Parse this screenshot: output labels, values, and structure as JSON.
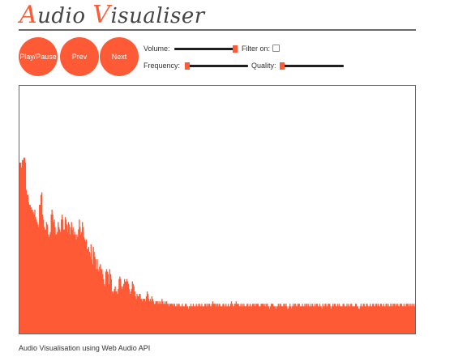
{
  "header": {
    "title_first_initial": "A",
    "title_first_rest": "udio ",
    "title_second_initial": "V",
    "title_second_rest": "isualiser"
  },
  "controls": {
    "play_pause_label": "Play/Pause",
    "prev_label": "Prev",
    "next_label": "Next",
    "volume_label": "Volume:",
    "volume_value": 1.0,
    "filter_label": "Filter on:",
    "filter_checked": false,
    "frequency_label": "Frequency:",
    "frequency_value": 0.0,
    "quality_label": "Quality:",
    "quality_value": 0.0
  },
  "visualiser": {
    "bar_color": "#ff5a36",
    "levels": [
      0.69,
      0.69,
      0.67,
      0.7,
      0.7,
      0.71,
      0.71,
      0.69,
      0.58,
      0.56,
      0.56,
      0.53,
      0.52,
      0.52,
      0.51,
      0.5,
      0.5,
      0.49,
      0.48,
      0.5,
      0.47,
      0.46,
      0.45,
      0.44,
      0.43,
      0.52,
      0.52,
      0.56,
      0.57,
      0.48,
      0.46,
      0.43,
      0.42,
      0.42,
      0.45,
      0.44,
      0.4,
      0.39,
      0.4,
      0.41,
      0.48,
      0.5,
      0.48,
      0.45,
      0.46,
      0.43,
      0.4,
      0.4,
      0.41,
      0.45,
      0.43,
      0.42,
      0.41,
      0.46,
      0.48,
      0.46,
      0.42,
      0.42,
      0.47,
      0.46,
      0.44,
      0.41,
      0.45,
      0.44,
      0.4,
      0.43,
      0.45,
      0.42,
      0.43,
      0.4,
      0.41,
      0.4,
      0.38,
      0.4,
      0.39,
      0.42,
      0.46,
      0.43,
      0.4,
      0.41,
      0.45,
      0.43,
      0.39,
      0.38,
      0.37,
      0.38,
      0.34,
      0.34,
      0.35,
      0.33,
      0.31,
      0.36,
      0.3,
      0.28,
      0.35,
      0.33,
      0.31,
      0.3,
      0.26,
      0.3,
      0.26,
      0.25,
      0.27,
      0.28,
      0.26,
      0.26,
      0.24,
      0.22,
      0.2,
      0.19,
      0.25,
      0.26,
      0.25,
      0.24,
      0.2,
      0.26,
      0.24,
      0.22,
      0.17,
      0.16,
      0.17,
      0.18,
      0.19,
      0.17,
      0.17,
      0.16,
      0.18,
      0.22,
      0.23,
      0.22,
      0.19,
      0.18,
      0.19,
      0.2,
      0.22,
      0.21,
      0.21,
      0.22,
      0.21,
      0.2,
      0.18,
      0.16,
      0.17,
      0.18,
      0.21,
      0.2,
      0.19,
      0.17,
      0.15,
      0.14,
      0.16,
      0.15,
      0.15,
      0.16,
      0.16,
      0.14,
      0.14,
      0.13,
      0.14,
      0.14,
      0.14,
      0.13,
      0.15,
      0.17,
      0.16,
      0.14,
      0.13,
      0.14,
      0.13,
      0.15,
      0.14,
      0.13,
      0.12,
      0.12,
      0.13,
      0.13,
      0.13,
      0.12,
      0.13,
      0.12,
      0.13,
      0.12,
      0.14,
      0.13,
      0.12,
      0.12,
      0.13,
      0.12,
      0.13,
      0.12,
      0.12,
      0.11,
      0.12,
      0.12,
      0.12,
      0.12,
      0.11,
      0.12,
      0.12,
      0.11,
      0.11,
      0.12,
      0.11,
      0.12,
      0.12,
      0.11,
      0.11,
      0.11,
      0.12,
      0.11,
      0.11,
      0.11,
      0.12,
      0.12,
      0.11,
      0.11,
      0.1,
      0.11,
      0.11,
      0.12,
      0.11,
      0.11,
      0.12,
      0.11,
      0.11,
      0.11,
      0.12,
      0.11,
      0.11,
      0.12,
      0.12,
      0.11,
      0.11,
      0.12,
      0.11,
      0.11,
      0.11,
      0.12,
      0.12,
      0.11,
      0.12,
      0.11,
      0.12,
      0.12,
      0.11,
      0.11,
      0.12,
      0.13,
      0.12,
      0.12,
      0.12,
      0.11,
      0.12,
      0.12,
      0.11,
      0.12,
      0.12,
      0.11,
      0.11,
      0.11,
      0.12,
      0.12,
      0.11,
      0.11,
      0.12,
      0.11,
      0.11,
      0.12,
      0.11,
      0.11,
      0.12,
      0.13,
      0.12,
      0.11,
      0.11,
      0.12,
      0.12,
      0.13,
      0.12,
      0.12,
      0.12,
      0.11,
      0.11,
      0.12,
      0.11,
      0.12,
      0.11,
      0.12,
      0.11,
      0.11,
      0.11,
      0.12,
      0.12,
      0.11,
      0.11,
      0.12,
      0.11,
      0.11,
      0.12,
      0.12,
      0.11,
      0.12,
      0.11,
      0.12,
      0.12,
      0.12,
      0.11,
      0.11,
      0.11,
      0.12,
      0.12,
      0.12,
      0.12,
      0.11,
      0.12,
      0.11,
      0.12,
      0.12,
      0.11,
      0.11,
      0.1,
      0.11,
      0.12,
      0.12,
      0.12,
      0.11,
      0.11,
      0.11,
      0.1,
      0.11,
      0.11,
      0.12,
      0.11,
      0.12,
      0.12,
      0.11,
      0.11,
      0.11,
      0.12,
      0.12,
      0.11,
      0.12,
      0.11,
      0.1,
      0.1,
      0.11,
      0.12,
      0.11,
      0.1,
      0.11,
      0.12,
      0.11,
      0.12,
      0.12,
      0.11,
      0.11,
      0.12,
      0.12,
      0.12,
      0.11,
      0.11,
      0.11,
      0.12,
      0.11,
      0.11,
      0.12,
      0.11,
      0.12,
      0.12,
      0.11,
      0.12,
      0.11,
      0.11,
      0.12,
      0.11,
      0.12,
      0.11,
      0.11,
      0.12,
      0.11,
      0.12,
      0.12,
      0.11,
      0.11,
      0.12,
      0.11,
      0.11,
      0.1,
      0.12,
      0.11,
      0.11,
      0.12,
      0.12,
      0.11,
      0.11,
      0.12,
      0.12,
      0.12,
      0.11,
      0.1,
      0.11,
      0.12,
      0.11,
      0.12,
      0.12,
      0.11,
      0.11,
      0.12,
      0.11,
      0.12,
      0.11,
      0.11,
      0.11,
      0.11,
      0.12,
      0.12,
      0.11,
      0.11,
      0.11,
      0.12,
      0.11,
      0.12,
      0.11,
      0.11,
      0.12,
      0.12,
      0.11,
      0.11,
      0.11,
      0.11,
      0.12,
      0.12,
      0.11,
      0.11,
      0.1,
      0.1,
      0.11,
      0.12,
      0.11,
      0.11,
      0.12,
      0.12,
      0.11,
      0.11,
      0.12,
      0.12,
      0.11,
      0.11,
      0.11,
      0.12,
      0.11,
      0.11,
      0.12,
      0.12,
      0.11,
      0.11,
      0.12,
      0.12,
      0.11,
      0.12,
      0.11,
      0.11,
      0.12,
      0.12,
      0.11,
      0.11,
      0.12,
      0.11,
      0.11,
      0.12,
      0.12,
      0.11,
      0.12,
      0.11,
      0.11,
      0.12,
      0.11,
      0.12,
      0.11,
      0.12,
      0.12,
      0.11,
      0.12,
      0.11,
      0.12,
      0.11,
      0.11,
      0.12,
      0.12,
      0.12,
      0.11,
      0.11,
      0.12,
      0.11,
      0.11,
      0.12,
      0.12,
      0.12,
      0.11,
      0.12,
      0.11,
      0.12,
      0.11,
      0.12,
      0.11,
      0.12,
      0.11
    ]
  },
  "footer": {
    "text": "Audio Visualisation using Web Audio API"
  }
}
